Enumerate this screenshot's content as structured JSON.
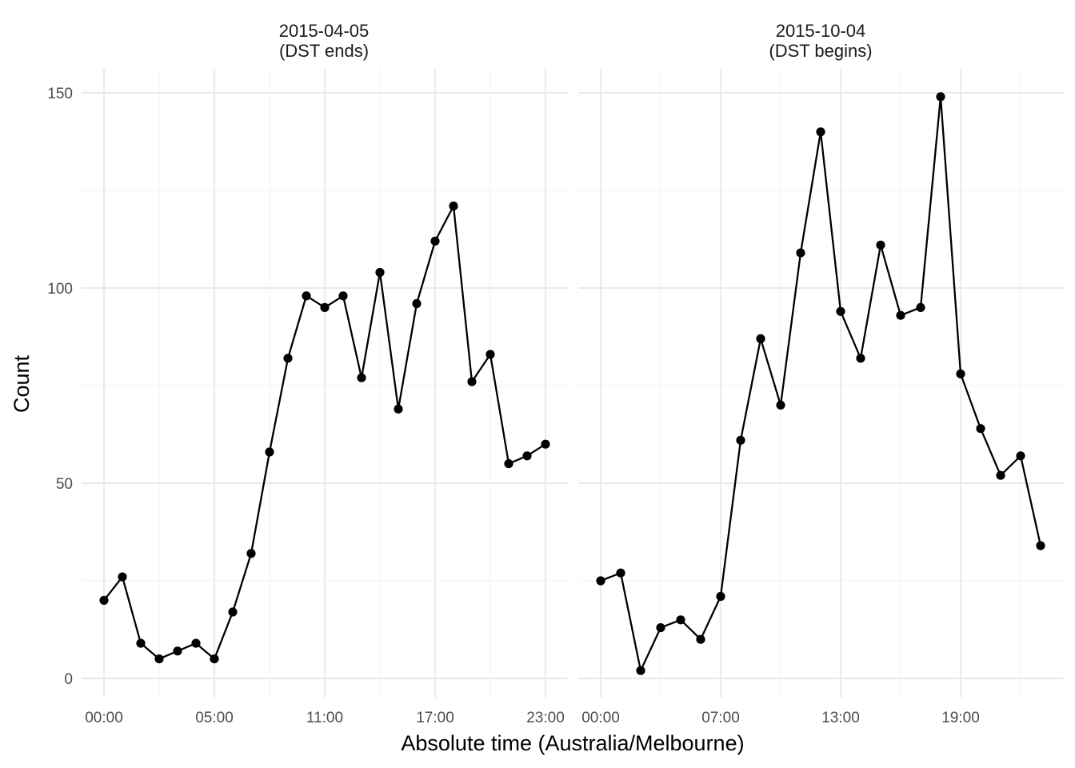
{
  "chart_data": [
    {
      "type": "line",
      "title": "2015-04-05",
      "subtitle": "(DST ends)",
      "x": [
        "00:00",
        "01:00",
        "02:00",
        "03:00",
        "03:00",
        "04:00",
        "05:00",
        "06:00",
        "07:00",
        "08:00",
        "09:00",
        "10:00",
        "11:00",
        "12:00",
        "13:00",
        "14:00",
        "15:00",
        "16:00",
        "17:00",
        "18:00",
        "19:00",
        "20:00",
        "21:00",
        "22:00",
        "23:00"
      ],
      "x_tick_labels": [
        "00:00",
        "05:00",
        "11:00",
        "17:00",
        "23:00"
      ],
      "y_tick_labels": [
        "0",
        "50",
        "100",
        "150"
      ],
      "values": [
        20,
        26,
        9,
        5,
        7,
        9,
        5,
        17,
        32,
        58,
        82,
        98,
        95,
        98,
        77,
        104,
        69,
        96,
        112,
        121,
        76,
        83,
        55,
        57,
        60
      ],
      "ylim": [
        -5,
        155
      ],
      "grid": true
    },
    {
      "type": "line",
      "title": "2015-10-04",
      "subtitle": "(DST begins)",
      "x": [
        "00:00",
        "01:00",
        "03:00",
        "04:00",
        "05:00",
        "06:00",
        "07:00",
        "08:00",
        "09:00",
        "10:00",
        "11:00",
        "12:00",
        "13:00",
        "14:00",
        "15:00",
        "16:00",
        "17:00",
        "18:00",
        "19:00",
        "20:00",
        "21:00",
        "22:00",
        "23:00"
      ],
      "x_tick_labels": [
        "00:00",
        "07:00",
        "13:00",
        "19:00"
      ],
      "y_tick_labels": [
        "0",
        "50",
        "100",
        "150"
      ],
      "values": [
        25,
        27,
        2,
        13,
        15,
        10,
        21,
        61,
        87,
        70,
        109,
        140,
        94,
        82,
        111,
        93,
        95,
        149,
        78,
        64,
        52,
        57,
        34
      ],
      "ylim": [
        -5,
        155
      ],
      "grid": true
    }
  ],
  "axes": {
    "xlabel": "Absolute time (Australia/Melbourne)",
    "ylabel": "Count"
  }
}
